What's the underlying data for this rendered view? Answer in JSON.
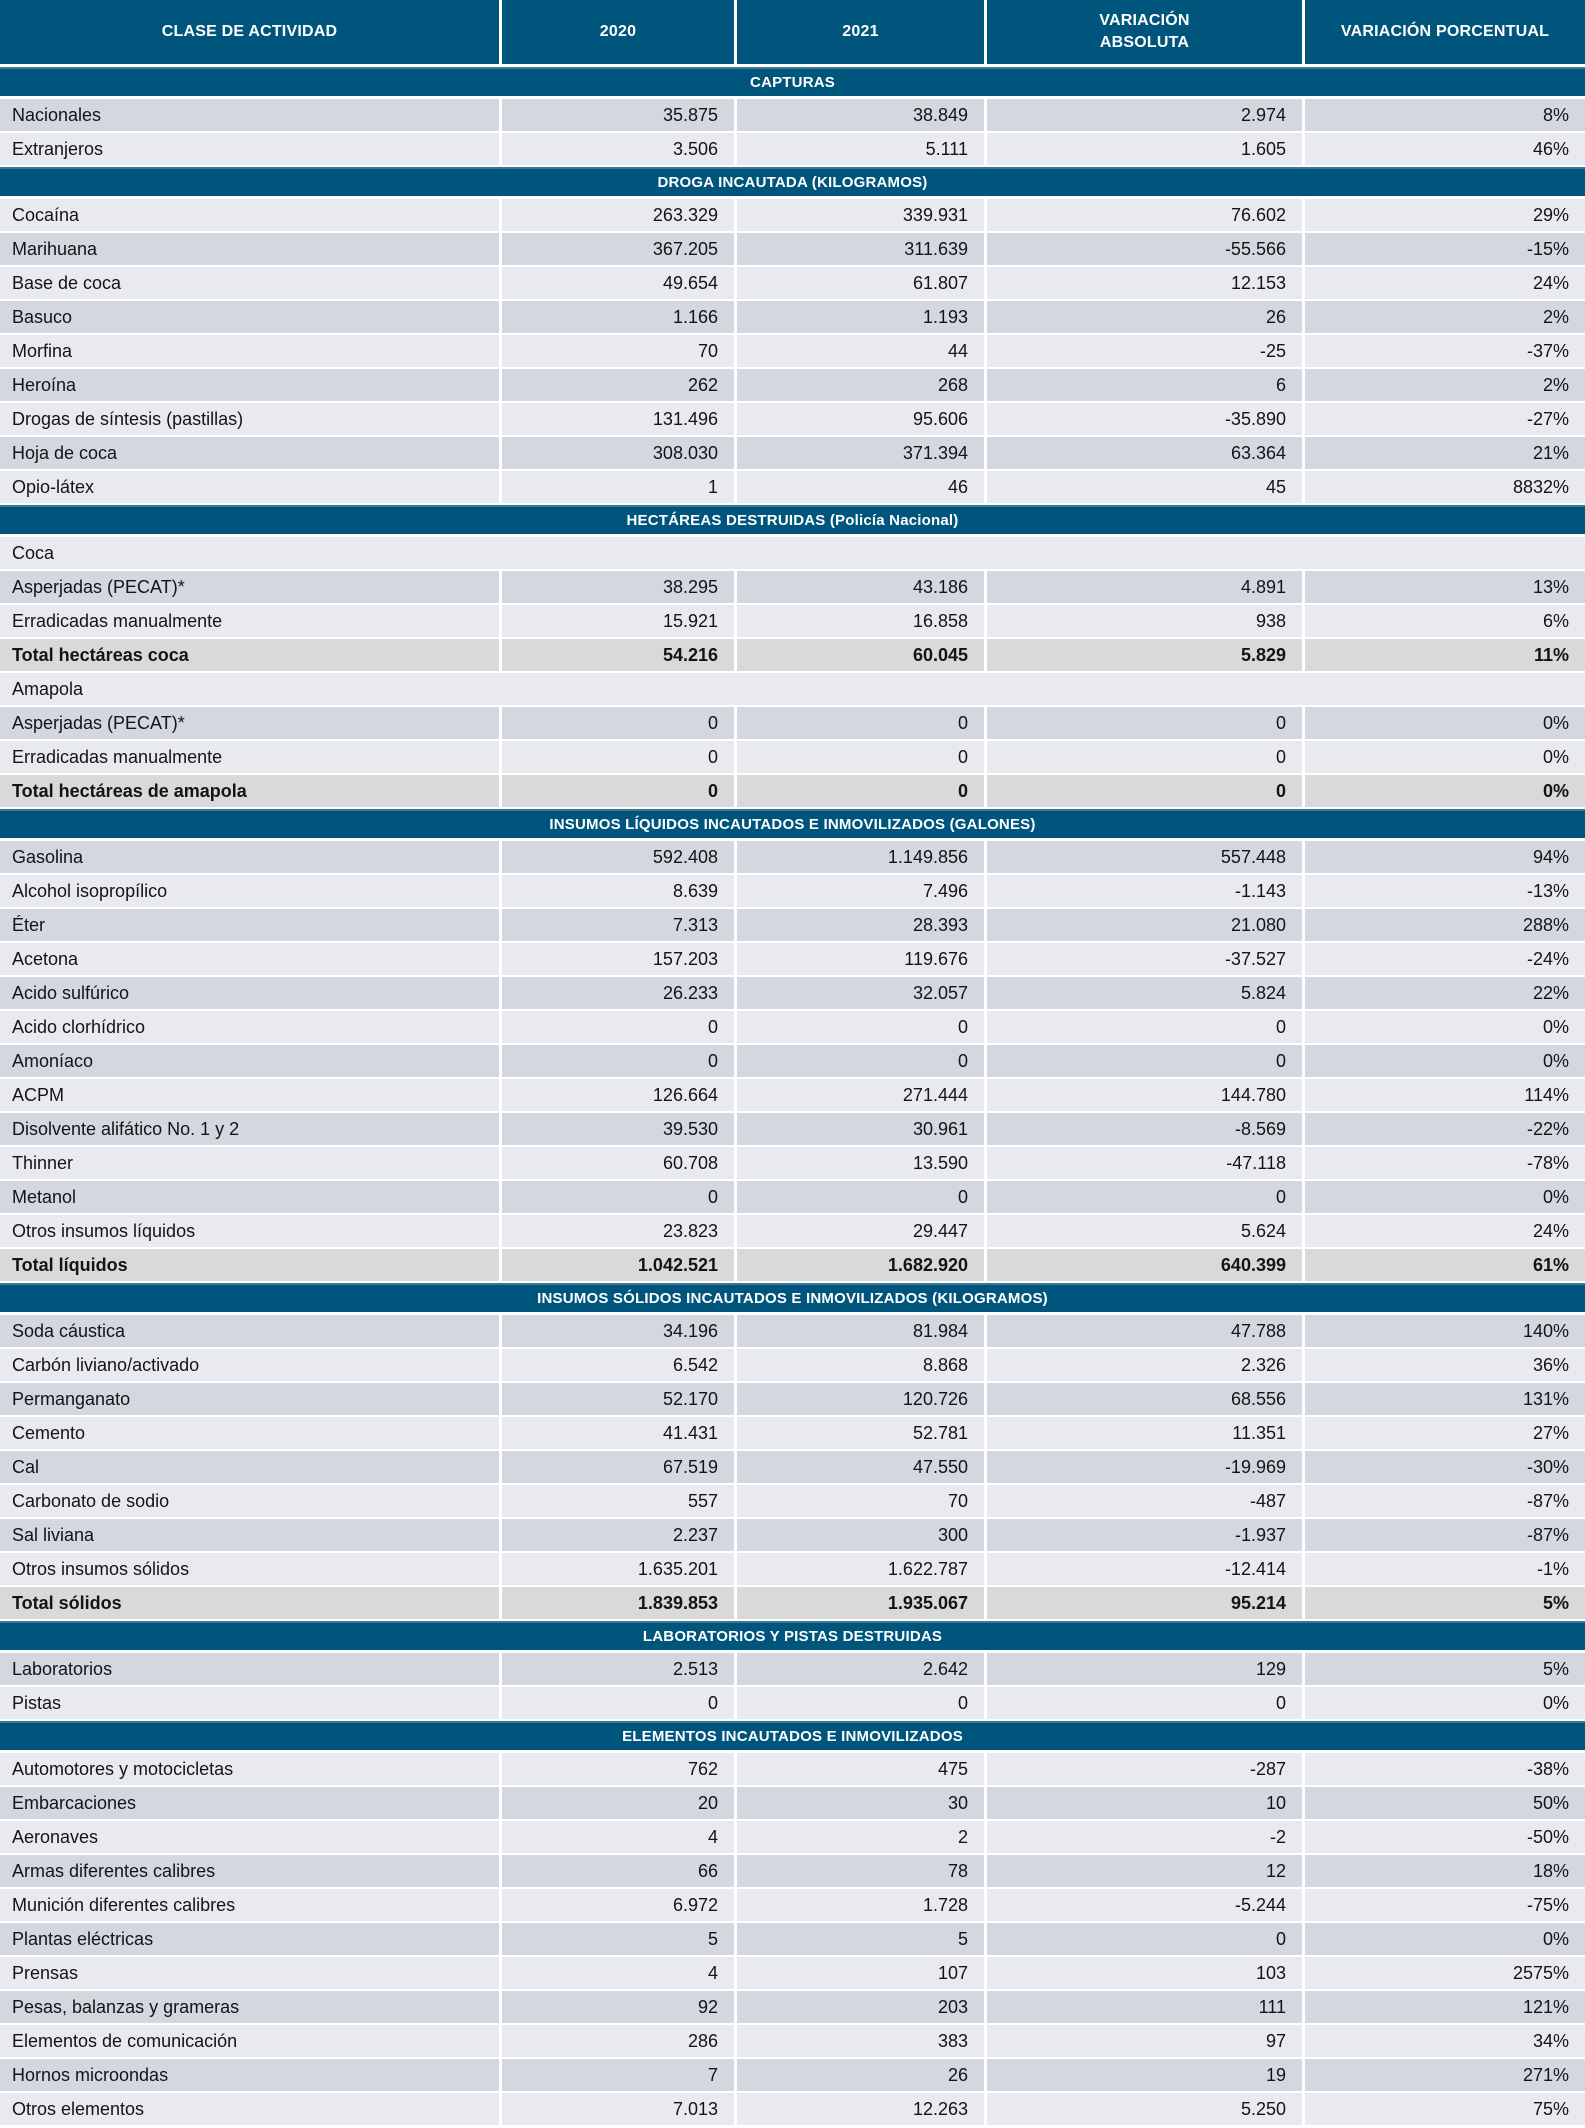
{
  "colors": {
    "band_teal": "#00557D",
    "band_top_edge": "#3A7896",
    "row_dark": "#D2D7E0",
    "row_light": "#E8EAF0",
    "row_total": "#D9D9D9",
    "header_text": "#FFFFFF",
    "body_text": "#141414"
  },
  "header": {
    "columns": [
      "CLASE DE ACTIVIDAD",
      "2020",
      "2021",
      "VARIACIÓN\nABSOLUTA",
      "VARIACIÓN PORCENTUAL"
    ]
  },
  "sections": [
    {
      "title": "CAPTURAS",
      "rows": [
        {
          "type": "data",
          "label": "Nacionales",
          "y2020": "35.875",
          "y2021": "38.849",
          "abs": "2.974",
          "pct": "8%"
        },
        {
          "type": "data",
          "label": "Extranjeros",
          "y2020": "3.506",
          "y2021": "5.111",
          "abs": "1.605",
          "pct": "46%"
        }
      ]
    },
    {
      "title": "DROGA INCAUTADA (KILOGRAMOS)",
      "rows": [
        {
          "type": "data",
          "label": "Cocaína",
          "y2020": "263.329",
          "y2021": "339.931",
          "abs": "76.602",
          "pct": "29%"
        },
        {
          "type": "data",
          "label": "Marihuana",
          "y2020": "367.205",
          "y2021": "311.639",
          "abs": "-55.566",
          "pct": "-15%"
        },
        {
          "type": "data",
          "label": "Base de coca",
          "y2020": "49.654",
          "y2021": "61.807",
          "abs": "12.153",
          "pct": "24%"
        },
        {
          "type": "data",
          "label": "Basuco",
          "y2020": "1.166",
          "y2021": "1.193",
          "abs": "26",
          "pct": "2%"
        },
        {
          "type": "data",
          "label": "Morfina",
          "y2020": "70",
          "y2021": "44",
          "abs": "-25",
          "pct": "-37%"
        },
        {
          "type": "data",
          "label": "Heroína",
          "y2020": "262",
          "y2021": "268",
          "abs": "6",
          "pct": "2%"
        },
        {
          "type": "data",
          "label": "Drogas de síntesis (pastillas)",
          "y2020": "131.496",
          "y2021": "95.606",
          "abs": "-35.890",
          "pct": "-27%"
        },
        {
          "type": "data",
          "label": "Hoja de coca",
          "y2020": "308.030",
          "y2021": "371.394",
          "abs": "63.364",
          "pct": "21%"
        },
        {
          "type": "data",
          "label": "Opio-látex",
          "y2020": "1",
          "y2021": "46",
          "abs": "45",
          "pct": "8832%"
        }
      ]
    },
    {
      "title": "HECTÁREAS DESTRUIDAS (Policía Nacional)",
      "rows": [
        {
          "type": "subheader",
          "label": "Coca"
        },
        {
          "type": "data",
          "label": "Asperjadas (PECAT)*",
          "y2020": "38.295",
          "y2021": "43.186",
          "abs": "4.891",
          "pct": "13%"
        },
        {
          "type": "data",
          "label": "Erradicadas manualmente",
          "y2020": "15.921",
          "y2021": "16.858",
          "abs": "938",
          "pct": "6%"
        },
        {
          "type": "total",
          "label": "Total hectáreas coca",
          "y2020": "54.216",
          "y2021": "60.045",
          "abs": "5.829",
          "pct": "11%"
        },
        {
          "type": "subheader",
          "label": "Amapola"
        },
        {
          "type": "data",
          "label": "Asperjadas (PECAT)*",
          "y2020": "0",
          "y2021": "0",
          "abs": "0",
          "pct": "0%"
        },
        {
          "type": "data",
          "label": "Erradicadas manualmente",
          "y2020": "0",
          "y2021": "0",
          "abs": "0",
          "pct": "0%"
        },
        {
          "type": "total",
          "label": "Total hectáreas de amapola",
          "y2020": "0",
          "y2021": "0",
          "abs": "0",
          "pct": "0%"
        }
      ]
    },
    {
      "title": "INSUMOS LÍQUIDOS INCAUTADOS E INMOVILIZADOS (GALONES)",
      "rows": [
        {
          "type": "data",
          "label": "Gasolina",
          "y2020": "592.408",
          "y2021": "1.149.856",
          "abs": "557.448",
          "pct": "94%"
        },
        {
          "type": "data",
          "label": "Alcohol isopropílico",
          "y2020": "8.639",
          "y2021": "7.496",
          "abs": "-1.143",
          "pct": "-13%"
        },
        {
          "type": "data",
          "label": "Éter",
          "y2020": "7.313",
          "y2021": "28.393",
          "abs": "21.080",
          "pct": "288%"
        },
        {
          "type": "data",
          "label": "Acetona",
          "y2020": "157.203",
          "y2021": "119.676",
          "abs": "-37.527",
          "pct": "-24%"
        },
        {
          "type": "data",
          "label": "Acido sulfúrico",
          "y2020": "26.233",
          "y2021": "32.057",
          "abs": "5.824",
          "pct": "22%"
        },
        {
          "type": "data",
          "label": "Acido clorhídrico",
          "y2020": "0",
          "y2021": "0",
          "abs": "0",
          "pct": "0%"
        },
        {
          "type": "data",
          "label": "Amoníaco",
          "y2020": "0",
          "y2021": "0",
          "abs": "0",
          "pct": "0%"
        },
        {
          "type": "data",
          "label": "ACPM",
          "y2020": "126.664",
          "y2021": "271.444",
          "abs": "144.780",
          "pct": "114%"
        },
        {
          "type": "data",
          "label": "Disolvente alifático No. 1 y 2",
          "y2020": "39.530",
          "y2021": "30.961",
          "abs": "-8.569",
          "pct": "-22%"
        },
        {
          "type": "data",
          "label": "Thinner",
          "y2020": "60.708",
          "y2021": "13.590",
          "abs": "-47.118",
          "pct": "-78%"
        },
        {
          "type": "data",
          "label": "Metanol",
          "y2020": "0",
          "y2021": "0",
          "abs": "0",
          "pct": "0%"
        },
        {
          "type": "data",
          "label": "Otros insumos líquidos",
          "y2020": "23.823",
          "y2021": "29.447",
          "abs": "5.624",
          "pct": "24%"
        },
        {
          "type": "total",
          "label": "Total líquidos",
          "y2020": "1.042.521",
          "y2021": "1.682.920",
          "abs": "640.399",
          "pct": "61%"
        }
      ]
    },
    {
      "title": "INSUMOS SÓLIDOS INCAUTADOS E INMOVILIZADOS (KILOGRAMOS)",
      "rows": [
        {
          "type": "data",
          "label": "Soda cáustica",
          "y2020": "34.196",
          "y2021": "81.984",
          "abs": "47.788",
          "pct": "140%"
        },
        {
          "type": "data",
          "label": "Carbón liviano/activado",
          "y2020": "6.542",
          "y2021": "8.868",
          "abs": "2.326",
          "pct": "36%"
        },
        {
          "type": "data",
          "label": "Permanganato",
          "y2020": "52.170",
          "y2021": "120.726",
          "abs": "68.556",
          "pct": "131%"
        },
        {
          "type": "data",
          "label": "Cemento",
          "y2020": "41.431",
          "y2021": "52.781",
          "abs": "11.351",
          "pct": "27%"
        },
        {
          "type": "data",
          "label": "Cal",
          "y2020": "67.519",
          "y2021": "47.550",
          "abs": "-19.969",
          "pct": "-30%"
        },
        {
          "type": "data",
          "label": "Carbonato de sodio",
          "y2020": "557",
          "y2021": "70",
          "abs": "-487",
          "pct": "-87%"
        },
        {
          "type": "data",
          "label": "Sal liviana",
          "y2020": "2.237",
          "y2021": "300",
          "abs": "-1.937",
          "pct": "-87%"
        },
        {
          "type": "data",
          "label": "Otros insumos sólidos",
          "y2020": "1.635.201",
          "y2021": "1.622.787",
          "abs": "-12.414",
          "pct": "-1%"
        },
        {
          "type": "total",
          "label": "Total sólidos",
          "y2020": "1.839.853",
          "y2021": "1.935.067",
          "abs": "95.214",
          "pct": "5%"
        }
      ]
    },
    {
      "title": "LABORATORIOS Y PISTAS DESTRUIDAS",
      "rows": [
        {
          "type": "data",
          "label": "Laboratorios",
          "y2020": "2.513",
          "y2021": "2.642",
          "abs": "129",
          "pct": "5%"
        },
        {
          "type": "data",
          "label": "Pistas",
          "y2020": "0",
          "y2021": "0",
          "abs": "0",
          "pct": "0%"
        }
      ]
    },
    {
      "title": "ELEMENTOS INCAUTADOS E INMOVILIZADOS",
      "rows": [
        {
          "type": "data",
          "label": "Automotores y motocicletas",
          "y2020": "762",
          "y2021": "475",
          "abs": "-287",
          "pct": "-38%"
        },
        {
          "type": "data",
          "label": "Embarcaciones",
          "y2020": "20",
          "y2021": "30",
          "abs": "10",
          "pct": "50%"
        },
        {
          "type": "data",
          "label": "Aeronaves",
          "y2020": "4",
          "y2021": "2",
          "abs": "-2",
          "pct": "-50%"
        },
        {
          "type": "data",
          "label": "Armas diferentes calibres",
          "y2020": "66",
          "y2021": "78",
          "abs": "12",
          "pct": "18%"
        },
        {
          "type": "data",
          "label": "Munición diferentes calibres",
          "y2020": "6.972",
          "y2021": "1.728",
          "abs": "-5.244",
          "pct": "-75%"
        },
        {
          "type": "data",
          "label": "Plantas eléctricas",
          "y2020": "5",
          "y2021": "5",
          "abs": "0",
          "pct": "0%"
        },
        {
          "type": "data",
          "label": "Prensas",
          "y2020": "4",
          "y2021": "107",
          "abs": "103",
          "pct": "2575%"
        },
        {
          "type": "data",
          "label": "Pesas, balanzas y grameras",
          "y2020": "92",
          "y2021": "203",
          "abs": "111",
          "pct": "121%"
        },
        {
          "type": "data",
          "label": "Elementos de comunicación",
          "y2020": "286",
          "y2021": "383",
          "abs": "97",
          "pct": "34%"
        },
        {
          "type": "data",
          "label": "Hornos microondas",
          "y2020": "7",
          "y2021": "26",
          "abs": "19",
          "pct": "271%"
        },
        {
          "type": "data",
          "label": "Otros elementos",
          "y2020": "7.013",
          "y2021": "12.263",
          "abs": "5.250",
          "pct": "75%"
        }
      ]
    }
  ]
}
